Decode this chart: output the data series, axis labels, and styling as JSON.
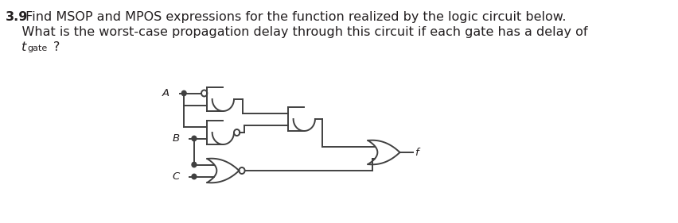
{
  "title_bold": "3.9",
  "title_text": " Find MSOP and MPOS expressions for the function realized by the logic circuit below.",
  "line2": "    What is the worst-case propagation delay through this circuit if each gate has a delay of",
  "line3_t": "t",
  "line3_gate": "gate",
  "line3_q": "?",
  "bg_color": "#ffffff",
  "text_color": "#231f20",
  "gate_color": "#404040",
  "label_A": "A",
  "label_B": "B",
  "label_C": "C",
  "label_f": "f",
  "font_size_main": 11.5,
  "font_size_label": 9.5
}
